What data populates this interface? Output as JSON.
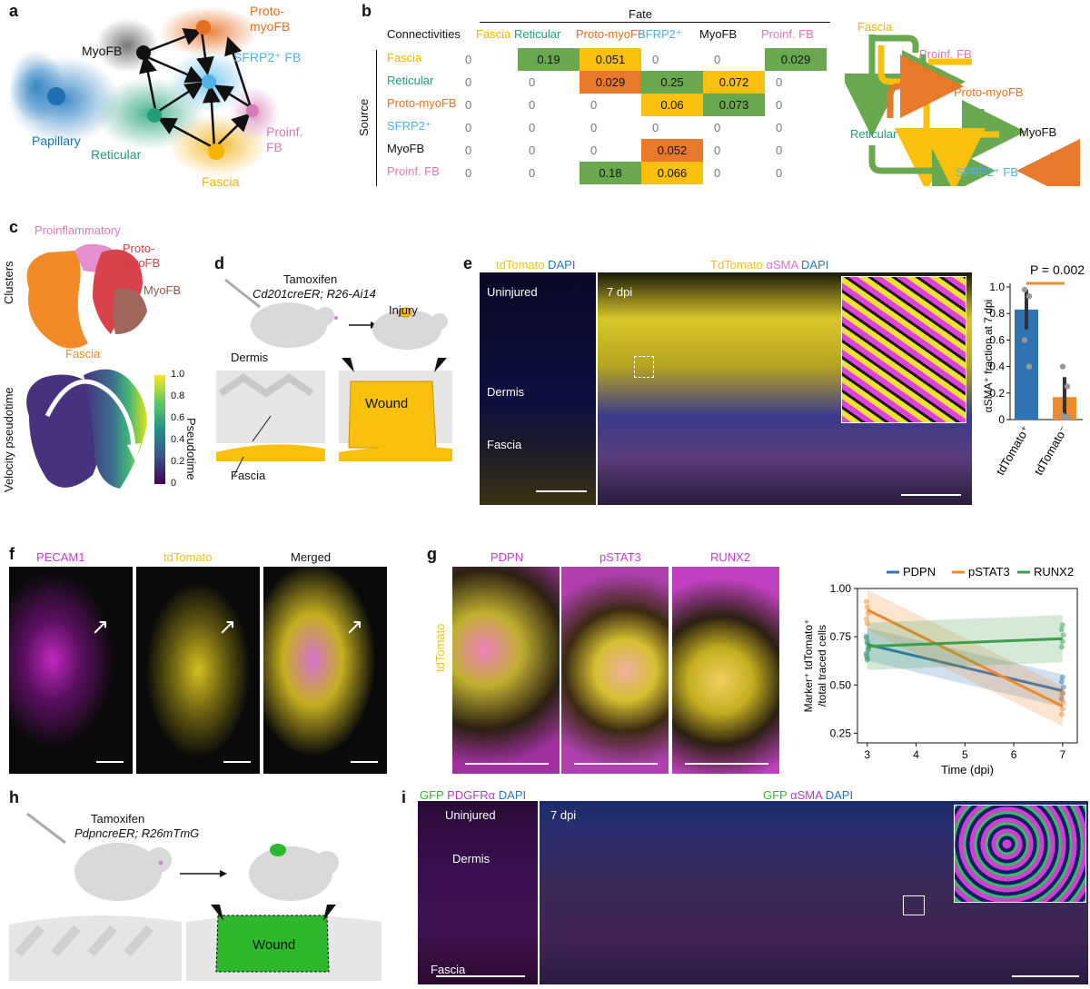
{
  "panels": {
    "a": "a",
    "b": "b",
    "c": "c",
    "d": "d",
    "e": "e",
    "f": "f",
    "g": "g",
    "h": "h",
    "i": "i"
  },
  "panel_a": {
    "labels": {
      "myofb": "MyoFB",
      "proto_myofb": "Proto-\nmyoFB",
      "sfrp2": "SFRP2⁺ FB",
      "papillary": "Papillary",
      "reticular": "Reticular",
      "proinf": "Proinf.\nFB",
      "fascia": "Fascia"
    }
  },
  "panel_b": {
    "fate_label": "Fate",
    "source_label": "Source",
    "corner_label": "Connectivities",
    "columns": [
      "Fascia",
      "Reticular",
      "Proto-myoFB",
      "SFRP2⁺",
      "MyoFB",
      "Proinf. FB"
    ],
    "rows": [
      {
        "name": "Fascia",
        "values": [
          "0",
          "0.19",
          "0.051",
          "0",
          "0",
          "0.029"
        ]
      },
      {
        "name": "Reticular",
        "values": [
          "0",
          "0",
          "0.029",
          "0.25",
          "0.072",
          "0"
        ]
      },
      {
        "name": "Proto-myoFB",
        "values": [
          "0",
          "0",
          "0",
          "0.06",
          "0.073",
          "0"
        ]
      },
      {
        "name": "SFRP2⁺",
        "values": [
          "0",
          "0",
          "0",
          "0",
          "0",
          "0"
        ]
      },
      {
        "name": "MyoFB",
        "values": [
          "0",
          "0",
          "0",
          "0.052",
          "0",
          "0"
        ]
      },
      {
        "name": "Proinf. FB",
        "values": [
          "0",
          "0",
          "0.18",
          "0.066",
          "0",
          "0"
        ]
      }
    ],
    "colors": {
      "fascia": "#f4b400",
      "reticular": "#1f9e7a",
      "proto": "#e3711f",
      "sfrp2": "#4fb3e8",
      "myofb": "#111111",
      "proinf": "#d77bb8",
      "green_fill": "#6aa84f",
      "yellow_fill": "#f9c10e",
      "orange_fill": "#e8792b"
    },
    "flow_labels": {
      "fascia": "Fascia",
      "proinf": "Proinf. FB",
      "proto": "Proto-myoFB",
      "reticular": "Reticular",
      "myofb": "MyoFB",
      "sfrp2": "SFRP2⁺ FB"
    }
  },
  "panel_c": {
    "top_ylabel": "Clusters",
    "bottom_ylabel": "Velocity pseudotime",
    "proinflammatory": "Proinflammatory",
    "proto_myofb": "Proto-\nmyoFB",
    "myofb": "MyoFB",
    "fascia": "Fascia",
    "colorbar_label": "Pseudotime",
    "colorbar_ticks": [
      "1.0",
      "0.8",
      "0.6",
      "0.4",
      "0.2",
      "0"
    ]
  },
  "panel_d": {
    "tamoxifen": "Tamoxifen",
    "genotype": "Cd201creER; R26-Ai14",
    "injury": "Injury",
    "dermis": "Dermis",
    "wound": "Wound",
    "fascia": "Fascia"
  },
  "panel_e": {
    "left_header_1": "tdTomato",
    "left_header_2": "DAPI",
    "right_header_1": "TdTomato",
    "right_header_2": "αSMA",
    "right_header_3": "DAPI",
    "uninjured": "Uninjured",
    "dermis": "Dermis",
    "fascia": "Fascia",
    "dpi": "7 dpi"
  },
  "panel_e_chart": {
    "chart_data": {
      "type": "bar",
      "categories": [
        "tdTomato⁺",
        "tdTomato⁻"
      ],
      "values": [
        0.83,
        0.17
      ],
      "points": [
        [
          0.98,
          0.93,
          0.6,
          0.4
        ],
        [
          0.4,
          0.25,
          0.03,
          0.02
        ]
      ],
      "ylabel": "αSMA⁺ fraction at 7 dpi",
      "ylim": [
        0,
        1.0
      ],
      "yticks": [
        "0",
        "0.2",
        "0.4",
        "0.6",
        "0.8",
        "1.0"
      ],
      "annotation": "P = 0.002",
      "colors": [
        "#2f73b5",
        "#ef8a2c"
      ]
    }
  },
  "panel_f": {
    "headers": [
      "PECAM1",
      "tdTomato",
      "Merged"
    ],
    "header_colors": [
      "#c040d0",
      "#f0c419",
      "#111111"
    ]
  },
  "panel_g": {
    "headers": [
      "PDPN",
      "pSTAT3",
      "RUNX2"
    ],
    "side_label": "tdTomato"
  },
  "panel_g_chart": {
    "chart_data": {
      "type": "line",
      "x": [
        3,
        7
      ],
      "series": [
        {
          "name": "PDPN",
          "values": [
            0.71,
            0.47
          ],
          "color": "#2f73b5"
        },
        {
          "name": "pSTAT3",
          "values": [
            0.89,
            0.39
          ],
          "color": "#ef8a2c"
        },
        {
          "name": "RUNX2",
          "values": [
            0.7,
            0.74
          ],
          "color": "#3aa04a"
        }
      ],
      "xlabel": "Time (dpi)",
      "ylabel": "Marker⁺ tdTomato⁺\n/total traced cells",
      "xlim": [
        2.8,
        7.3
      ],
      "ylim": [
        0.2,
        1.0
      ],
      "xticks": [
        "3",
        "4",
        "5",
        "6",
        "7"
      ],
      "yticks": [
        "0.25",
        "0.50",
        "0.75",
        "1.00"
      ]
    }
  },
  "panel_h": {
    "tamoxifen": "Tamoxifen",
    "genotype": "PdpncreER; R26mTmG",
    "wound": "Wound"
  },
  "panel_i": {
    "left_header_1": "GFP",
    "left_header_2": "PDGFRα",
    "left_header_3": "DAPI",
    "right_header_1": "GFP",
    "right_header_2": "αSMA",
    "right_header_3": "DAPI",
    "uninjured": "Uninjured",
    "dermis": "Dermis",
    "fascia": "Fascia",
    "dpi": "7 dpi"
  }
}
